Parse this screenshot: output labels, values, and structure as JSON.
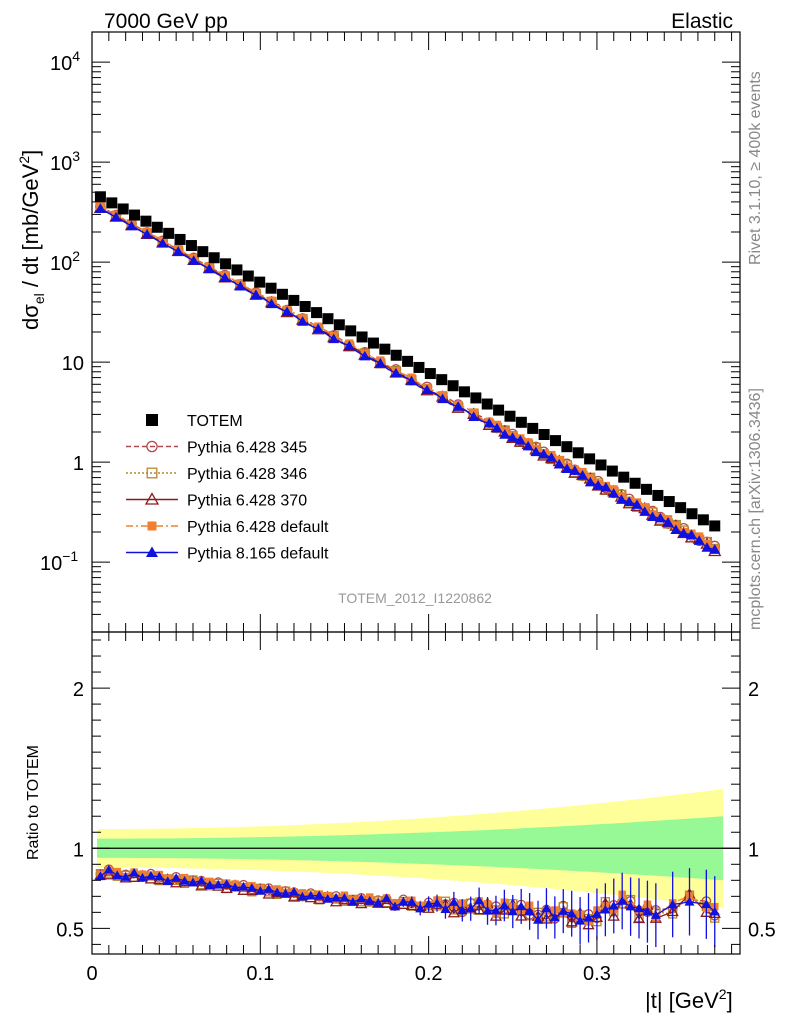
{
  "header": {
    "left": "7000 GeV pp",
    "right": "Elastic"
  },
  "side_labels": {
    "rivet": "Rivet 3.1.10, ≥ 400k events",
    "mcplots": "mcplots.cern.ch [arXiv:1306.3436]"
  },
  "analysis_label": "TOTEM_2012_I1220862",
  "colors": {
    "totem": "#000000",
    "p345": "#b5484f",
    "p346": "#b8862d",
    "p370": "#8b1a1a",
    "pdef": "#f08030",
    "p8": "#1010e0",
    "band_inner": "#96f996",
    "band_outer": "#ffff99"
  },
  "chart_data": [
    {
      "type": "scatter",
      "title": "",
      "xlabel": "|t| [GeV²]",
      "ylabel": "dσ_el / dt [mb/GeV²]",
      "log_y": true,
      "xlim": [
        0,
        0.385
      ],
      "ylim": [
        0.02,
        20000
      ],
      "x_ticks": [
        "0",
        "0.1",
        "0.2",
        "0.3"
      ],
      "y_ticks": [
        "10⁻¹",
        "1",
        "10",
        "10²",
        "10³",
        "10⁴"
      ],
      "legend_position": "left",
      "legend": [
        {
          "name": "TOTEM",
          "marker": "filled-square",
          "line": "none"
        },
        {
          "name": "Pythia 6.428 345",
          "marker": "open-circle",
          "line": "dashed"
        },
        {
          "name": "Pythia 6.428 346",
          "marker": "open-square",
          "line": "dotted"
        },
        {
          "name": "Pythia 6.428 370",
          "marker": "open-triangle",
          "line": "solid"
        },
        {
          "name": "Pythia 6.428 default",
          "marker": "filled-square-small",
          "line": "dashdot"
        },
        {
          "name": "Pythia 8.165 default",
          "marker": "filled-triangle",
          "line": "solid"
        }
      ],
      "totem": {
        "t0": 0.005,
        "t1": 0.37,
        "n": 55,
        "y_start": 450,
        "y_end": 0.23
      },
      "mc": {
        "t0": 0.005,
        "t1": 0.37,
        "n": 80,
        "y_start": 360,
        "y_end": 0.14
      }
    },
    {
      "type": "line",
      "title": "",
      "ylabel": "Ratio to TOTEM",
      "xlim": [
        0,
        0.385
      ],
      "ylim": [
        0.34,
        2.35
      ],
      "y_ticks": [
        "0.5",
        "1",
        "2"
      ],
      "reference": 1,
      "band_inner_halfwidth": {
        "start": 0.06,
        "end": 0.2
      },
      "band_outer_halfwidth": {
        "start": 0.12,
        "end": 0.37
      },
      "ratio_points": [
        [
          0.005,
          0.84
        ],
        [
          0.01,
          0.86
        ],
        [
          0.015,
          0.84
        ],
        [
          0.02,
          0.83
        ],
        [
          0.025,
          0.84
        ],
        [
          0.03,
          0.83
        ],
        [
          0.035,
          0.83
        ],
        [
          0.04,
          0.82
        ],
        [
          0.045,
          0.81
        ],
        [
          0.05,
          0.81
        ],
        [
          0.055,
          0.8
        ],
        [
          0.06,
          0.8
        ],
        [
          0.065,
          0.79
        ],
        [
          0.07,
          0.78
        ],
        [
          0.075,
          0.78
        ],
        [
          0.08,
          0.77
        ],
        [
          0.085,
          0.77
        ],
        [
          0.09,
          0.76
        ],
        [
          0.095,
          0.75
        ],
        [
          0.1,
          0.75
        ],
        [
          0.105,
          0.74
        ],
        [
          0.11,
          0.73
        ],
        [
          0.115,
          0.73
        ],
        [
          0.12,
          0.72
        ],
        [
          0.125,
          0.71
        ],
        [
          0.13,
          0.71
        ],
        [
          0.135,
          0.7
        ],
        [
          0.14,
          0.7
        ],
        [
          0.145,
          0.69
        ],
        [
          0.15,
          0.69
        ],
        [
          0.155,
          0.68
        ],
        [
          0.16,
          0.68
        ],
        [
          0.165,
          0.68
        ],
        [
          0.17,
          0.67
        ],
        [
          0.175,
          0.68
        ],
        [
          0.18,
          0.65
        ],
        [
          0.185,
          0.67
        ],
        [
          0.19,
          0.66
        ],
        [
          0.195,
          0.64
        ],
        [
          0.2,
          0.65
        ],
        [
          0.205,
          0.66
        ],
        [
          0.21,
          0.65
        ],
        [
          0.215,
          0.64
        ],
        [
          0.22,
          0.63
        ],
        [
          0.225,
          0.64
        ],
        [
          0.23,
          0.65
        ],
        [
          0.235,
          0.64
        ],
        [
          0.24,
          0.61
        ],
        [
          0.245,
          0.63
        ],
        [
          0.25,
          0.64
        ],
        [
          0.255,
          0.62
        ],
        [
          0.26,
          0.61
        ],
        [
          0.265,
          0.58
        ],
        [
          0.27,
          0.6
        ],
        [
          0.275,
          0.59
        ],
        [
          0.28,
          0.62
        ],
        [
          0.285,
          0.57
        ],
        [
          0.29,
          0.58
        ],
        [
          0.295,
          0.56
        ],
        [
          0.3,
          0.58
        ],
        [
          0.305,
          0.65
        ],
        [
          0.31,
          0.62
        ],
        [
          0.315,
          0.68
        ],
        [
          0.32,
          0.66
        ],
        [
          0.325,
          0.6
        ],
        [
          0.33,
          0.63
        ],
        [
          0.335,
          0.59
        ],
        [
          0.345,
          0.63
        ],
        [
          0.355,
          0.7
        ],
        [
          0.365,
          0.64
        ],
        [
          0.37,
          0.6
        ]
      ]
    }
  ]
}
